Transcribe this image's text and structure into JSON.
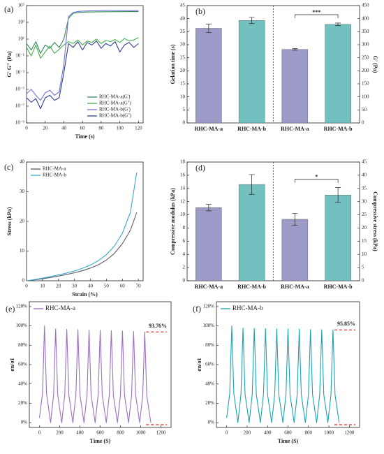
{
  "chart_data": [
    {
      "type": "line",
      "label": "(a)",
      "xlabel": "Time (s)",
      "ylabel": "G' G'' (Pa)",
      "yscale": "log",
      "legend": "lower right",
      "x": [
        0,
        5,
        10,
        15,
        20,
        25,
        30,
        35,
        40,
        45,
        50,
        55,
        60,
        65,
        70,
        75,
        80,
        85,
        90,
        95,
        100,
        105,
        110,
        115,
        120
      ],
      "xlim": [
        0,
        125
      ],
      "xticks": [
        0,
        20,
        40,
        60,
        80,
        100,
        120
      ],
      "ylim": [
        1e-09,
        100000
      ],
      "yticks": [
        {
          "value": 100000,
          "label": "10⁵"
        },
        {
          "value": 1000,
          "label": "10³"
        },
        {
          "value": 10,
          "label": "10¹"
        },
        {
          "value": 0.1,
          "label": "10⁻¹"
        },
        {
          "value": 0.001,
          "label": "10⁻³"
        },
        {
          "value": 1e-05,
          "label": "10⁻⁵"
        },
        {
          "value": 1e-07,
          "label": "10⁻⁷"
        },
        {
          "value": 1e-09,
          "label": "10⁻⁹"
        }
      ],
      "series": [
        {
          "name": "RHC-MA-a(G')",
          "color": "#2e8b57",
          "values": [
            3,
            0.5,
            5,
            0.2,
            2,
            0.8,
            4,
            1,
            10,
            3000,
            12000,
            15000,
            16000,
            17000,
            17500,
            18000,
            18000,
            18500,
            18500,
            19000,
            19000,
            19000,
            19500,
            19500,
            19500
          ]
        },
        {
          "name": "RHC-MA-a(G'')",
          "color": "#46b04a",
          "values": [
            1,
            0.1,
            2,
            0.05,
            0.3,
            1.5,
            0.2,
            0.6,
            2,
            5,
            3,
            8,
            2,
            6,
            4,
            10,
            3,
            7,
            5,
            9,
            4,
            12,
            6,
            8,
            15
          ]
        },
        {
          "name": "RHC-MA-b(G')",
          "color": "#7272d8",
          "values": [
            3e-06,
            1e-05,
            2e-06,
            5e-07,
            4e-06,
            8e-06,
            2e-06,
            5e-06,
            0.01,
            5000,
            15000,
            20000,
            22000,
            23000,
            24000,
            24500,
            25000,
            25000,
            25500,
            25500,
            26000,
            26000,
            26000,
            26500,
            26500
          ]
        },
        {
          "name": "RHC-MA-b(G'')",
          "color": "#2f3f8f",
          "values": [
            1e-06,
            3e-07,
            8e-07,
            5e-08,
            1e-06,
            2e-06,
            5e-07,
            1e-06,
            0.001,
            3,
            1,
            5,
            0.5,
            4,
            2,
            6,
            0.8,
            3,
            1.5,
            5,
            0.3,
            2,
            4,
            1,
            3
          ]
        }
      ]
    },
    {
      "type": "bar",
      "label": "(b)",
      "ylabel": "Gelation time (s)",
      "y2label": "G' (Pa)",
      "annotation": "***",
      "categories": [
        "RHC-MA-a",
        "RHC-MA-b",
        "RHC-MA-a",
        "RHC-MA-b"
      ],
      "colors": [
        "#9c9ac6",
        "#72c0c0",
        "#9c9ac6",
        "#72c0c0"
      ],
      "ylim": [
        0,
        45
      ],
      "yticks": [
        0,
        5,
        10,
        15,
        20,
        25,
        30,
        35,
        40,
        45
      ],
      "y2lim": [
        0,
        450
      ],
      "y2ticks": [
        0,
        50,
        100,
        150,
        200,
        250,
        300,
        350,
        400,
        450
      ],
      "series": [
        {
          "values": [
            36.3,
            39.3,
            null,
            null
          ],
          "errors": [
            1.6,
            1.2,
            null,
            null
          ]
        },
        {
          "axis": "y2",
          "values": [
            null,
            null,
            282,
            378
          ],
          "errors": [
            null,
            null,
            3,
            5
          ]
        }
      ]
    },
    {
      "type": "line",
      "label": "(c)",
      "xlabel": "Strain (%)",
      "ylabel": "Stress (kPa)",
      "legend": "upper left",
      "x": [
        0,
        5,
        10,
        15,
        20,
        25,
        30,
        35,
        40,
        45,
        50,
        55,
        60,
        65,
        69
      ],
      "xlim": [
        0,
        73
      ],
      "xticks": [
        0,
        10,
        20,
        30,
        40,
        50,
        60,
        70
      ],
      "ylim": [
        0,
        40
      ],
      "yticks": [
        0,
        10,
        20,
        30,
        40
      ],
      "series": [
        {
          "name": "RHC-MA-a",
          "color": "#5a5a6a",
          "values": [
            0,
            0.3,
            0.7,
            1.1,
            1.6,
            2.1,
            2.7,
            3.4,
            4.3,
            5.4,
            7,
            9.2,
            12.5,
            17,
            23
          ]
        },
        {
          "name": "RHC-MA-b",
          "color": "#3aa9c6",
          "values": [
            0,
            0.4,
            0.9,
            1.4,
            2,
            2.6,
            3.3,
            4.2,
            5.3,
            6.8,
            8.8,
            11.7,
            16,
            23,
            36.5
          ]
        }
      ]
    },
    {
      "type": "bar",
      "label": "(d)",
      "ylabel": "Compressive modulus (kPa)",
      "y2label": "Compressive stress (kPa)",
      "annotation": "*",
      "categories": [
        "RHC-MA-a",
        "RHC-MA-b",
        "RHC-MA-a",
        "RHC-MA-b"
      ],
      "colors": [
        "#9c9ac6",
        "#72c0c0",
        "#9c9ac6",
        "#72c0c0"
      ],
      "ylim": [
        0,
        18
      ],
      "yticks": [
        0,
        2,
        4,
        6,
        8,
        10,
        12,
        14,
        16,
        18
      ],
      "y2lim": [
        0,
        45
      ],
      "y2ticks": [
        0,
        5,
        10,
        15,
        20,
        25,
        30,
        35,
        40,
        45
      ],
      "series": [
        {
          "values": [
            11.1,
            14.6,
            null,
            null
          ],
          "errors": [
            0.5,
            1.5,
            null,
            null
          ]
        },
        {
          "axis": "y2",
          "values": [
            null,
            null,
            23.3,
            32.5
          ],
          "errors": [
            null,
            null,
            2.3,
            2.8
          ]
        }
      ]
    },
    {
      "type": "line",
      "label": "(e)",
      "xlabel": "Time (S)",
      "ylabel": "σn/σ1",
      "legend": "upper left",
      "annotation": {
        "value": 93.76,
        "label": "93.76%"
      },
      "x": [
        0,
        30,
        50,
        70,
        110,
        140,
        160,
        180,
        220,
        250,
        270,
        290,
        330,
        360,
        380,
        400,
        440,
        470,
        490,
        510,
        550,
        580,
        600,
        620,
        660,
        690,
        710,
        730,
        770,
        800,
        820,
        840,
        880,
        910,
        930,
        950,
        990,
        1020,
        1040,
        1060,
        1100
      ],
      "xlim": [
        -100,
        1300
      ],
      "xticks": [
        0,
        200,
        400,
        600,
        800,
        1000,
        1200
      ],
      "ylim": [
        -5,
        125
      ],
      "yticks": [
        {
          "value": 0,
          "label": "0%"
        },
        {
          "value": 20,
          "label": "20%"
        },
        {
          "value": 40,
          "label": "40%"
        },
        {
          "value": 60,
          "label": "60%"
        },
        {
          "value": 80,
          "label": "80%"
        },
        {
          "value": 100,
          "label": "100%"
        },
        {
          "value": 120,
          "label": "120%"
        }
      ],
      "series": [
        {
          "name": "RHC-MA-a",
          "color": "#9b6fc4",
          "values": [
            5,
            30,
            100,
            30,
            0,
            29,
            96.8,
            29,
            0,
            29,
            96.5,
            29,
            0,
            28.9,
            96.2,
            28.9,
            0,
            28.7,
            95.8,
            28.7,
            0,
            28.7,
            95.5,
            28.7,
            0,
            28.5,
            95.1,
            28.5,
            0,
            28.4,
            94.8,
            28.4,
            0,
            28.3,
            94.3,
            28.3,
            0,
            28.1,
            93.76,
            28.1,
            0
          ]
        }
      ]
    },
    {
      "type": "line",
      "label": "(f)",
      "xlabel": "Time (S)",
      "ylabel": "σn/σ1",
      "legend": "upper left",
      "annotation": {
        "value": 95.85,
        "label": "95.85%"
      },
      "x": [
        0,
        30,
        50,
        70,
        110,
        140,
        160,
        180,
        220,
        250,
        270,
        290,
        330,
        360,
        380,
        400,
        440,
        470,
        490,
        510,
        550,
        580,
        600,
        620,
        660,
        690,
        710,
        730,
        770,
        800,
        820,
        840,
        880,
        910,
        930,
        950,
        990,
        1020,
        1040,
        1060,
        1100
      ],
      "xlim": [
        -100,
        1300
      ],
      "xticks": [
        0,
        200,
        400,
        600,
        800,
        1000,
        1200
      ],
      "ylim": [
        -5,
        125
      ],
      "yticks": [
        {
          "value": 0,
          "label": "0%"
        },
        {
          "value": 20,
          "label": "20%"
        },
        {
          "value": 40,
          "label": "40%"
        },
        {
          "value": 60,
          "label": "60%"
        },
        {
          "value": 80,
          "label": "80%"
        },
        {
          "value": 100,
          "label": "100%"
        },
        {
          "value": 120,
          "label": "120%"
        }
      ],
      "series": [
        {
          "name": "RHC-MA-b",
          "color": "#1aa3b5",
          "values": [
            5,
            30,
            100,
            30,
            0,
            29.3,
            97.8,
            29.3,
            0,
            29.3,
            97.5,
            29.3,
            0,
            29.2,
            97.2,
            29.2,
            0,
            29.1,
            97,
            29.1,
            0,
            29,
            96.8,
            29,
            0,
            29,
            96.6,
            29,
            0,
            28.9,
            96.3,
            28.9,
            0,
            28.8,
            96.1,
            28.8,
            0,
            28.8,
            95.85,
            28.8,
            0
          ]
        }
      ]
    }
  ]
}
